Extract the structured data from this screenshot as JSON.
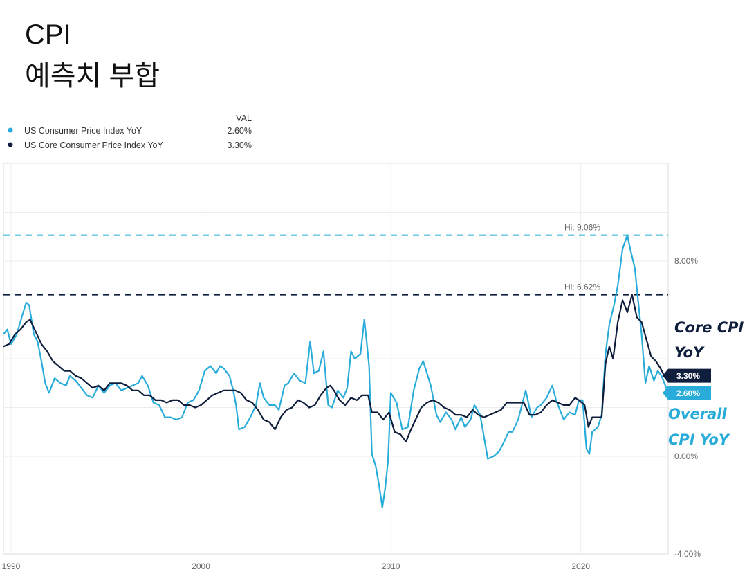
{
  "post": {
    "title_line1": "CPI",
    "title_line2": "예측치 부합"
  },
  "chart_data": {
    "type": "line",
    "legend_header": "VAL",
    "xlabel": "",
    "ylabel": "",
    "xlim": [
      1989.6,
      2024.6
    ],
    "ylim": [
      -4,
      12
    ],
    "x_ticks": [
      1990,
      2000,
      2010,
      2020
    ],
    "x_tick_labels": [
      "1990",
      "2000",
      "2010",
      "2020"
    ],
    "y_ticks": [
      8,
      0,
      -4
    ],
    "y_tick_labels": [
      "8.00%",
      "0.00%",
      "-4.00%"
    ],
    "colors": {
      "headline": "#29acd9",
      "core": "#0f1e3c"
    },
    "series": [
      {
        "name": "US Consumer Price Index YoY",
        "legend_value": "2.60%",
        "end_label": "2.60%",
        "high": 9.06,
        "high_label": "Hi: 9.06%",
        "points": [
          [
            1989.6,
            5.0
          ],
          [
            1989.8,
            5.2
          ],
          [
            1990.0,
            4.6
          ],
          [
            1990.3,
            5.0
          ],
          [
            1990.6,
            5.8
          ],
          [
            1990.8,
            6.3
          ],
          [
            1990.95,
            6.2
          ],
          [
            1991.2,
            5.0
          ],
          [
            1991.4,
            4.7
          ],
          [
            1991.6,
            3.9
          ],
          [
            1991.8,
            3.0
          ],
          [
            1992.0,
            2.6
          ],
          [
            1992.3,
            3.2
          ],
          [
            1992.6,
            3.0
          ],
          [
            1992.9,
            2.9
          ],
          [
            1993.1,
            3.3
          ],
          [
            1993.4,
            3.1
          ],
          [
            1993.7,
            2.8
          ],
          [
            1994.0,
            2.5
          ],
          [
            1994.3,
            2.4
          ],
          [
            1994.6,
            2.9
          ],
          [
            1994.9,
            2.6
          ],
          [
            1995.2,
            2.9
          ],
          [
            1995.5,
            3.0
          ],
          [
            1995.8,
            2.7
          ],
          [
            1996.1,
            2.8
          ],
          [
            1996.4,
            2.9
          ],
          [
            1996.7,
            3.0
          ],
          [
            1996.9,
            3.3
          ],
          [
            1997.2,
            2.9
          ],
          [
            1997.5,
            2.2
          ],
          [
            1997.8,
            2.1
          ],
          [
            1998.1,
            1.6
          ],
          [
            1998.4,
            1.6
          ],
          [
            1998.7,
            1.5
          ],
          [
            1999.0,
            1.6
          ],
          [
            1999.3,
            2.2
          ],
          [
            1999.6,
            2.3
          ],
          [
            1999.9,
            2.7
          ],
          [
            2000.2,
            3.5
          ],
          [
            2000.5,
            3.7
          ],
          [
            2000.8,
            3.4
          ],
          [
            2001.0,
            3.7
          ],
          [
            2001.2,
            3.6
          ],
          [
            2001.5,
            3.3
          ],
          [
            2001.7,
            2.7
          ],
          [
            2001.85,
            2.1
          ],
          [
            2002.0,
            1.1
          ],
          [
            2002.3,
            1.2
          ],
          [
            2002.6,
            1.6
          ],
          [
            2002.9,
            2.1
          ],
          [
            2003.1,
            3.0
          ],
          [
            2003.3,
            2.4
          ],
          [
            2003.6,
            2.1
          ],
          [
            2003.9,
            2.1
          ],
          [
            2004.1,
            1.9
          ],
          [
            2004.4,
            2.9
          ],
          [
            2004.6,
            3.0
          ],
          [
            2004.9,
            3.4
          ],
          [
            2005.2,
            3.1
          ],
          [
            2005.5,
            3.0
          ],
          [
            2005.75,
            4.7
          ],
          [
            2005.95,
            3.4
          ],
          [
            2006.2,
            3.5
          ],
          [
            2006.45,
            4.3
          ],
          [
            2006.7,
            2.1
          ],
          [
            2006.9,
            2.0
          ],
          [
            2007.2,
            2.7
          ],
          [
            2007.5,
            2.4
          ],
          [
            2007.7,
            2.8
          ],
          [
            2007.9,
            4.3
          ],
          [
            2008.1,
            4.0
          ],
          [
            2008.4,
            4.2
          ],
          [
            2008.6,
            5.6
          ],
          [
            2008.7,
            4.9
          ],
          [
            2008.85,
            3.7
          ],
          [
            2009.0,
            0.1
          ],
          [
            2009.2,
            -0.4
          ],
          [
            2009.4,
            -1.3
          ],
          [
            2009.55,
            -2.1
          ],
          [
            2009.7,
            -1.3
          ],
          [
            2009.85,
            -0.2
          ],
          [
            2010.0,
            2.6
          ],
          [
            2010.3,
            2.2
          ],
          [
            2010.6,
            1.1
          ],
          [
            2010.9,
            1.2
          ],
          [
            2011.2,
            2.7
          ],
          [
            2011.5,
            3.6
          ],
          [
            2011.7,
            3.9
          ],
          [
            2011.9,
            3.4
          ],
          [
            2012.1,
            2.9
          ],
          [
            2012.4,
            1.7
          ],
          [
            2012.6,
            1.4
          ],
          [
            2012.9,
            1.8
          ],
          [
            2013.2,
            1.5
          ],
          [
            2013.4,
            1.1
          ],
          [
            2013.7,
            1.6
          ],
          [
            2013.9,
            1.2
          ],
          [
            2014.2,
            1.5
          ],
          [
            2014.4,
            2.1
          ],
          [
            2014.7,
            1.7
          ],
          [
            2014.9,
            0.8
          ],
          [
            2015.1,
            -0.1
          ],
          [
            2015.4,
            0.0
          ],
          [
            2015.7,
            0.2
          ],
          [
            2015.9,
            0.5
          ],
          [
            2016.2,
            1.0
          ],
          [
            2016.4,
            1.0
          ],
          [
            2016.7,
            1.5
          ],
          [
            2016.9,
            2.1
          ],
          [
            2017.1,
            2.7
          ],
          [
            2017.4,
            1.6
          ],
          [
            2017.7,
            2.0
          ],
          [
            2017.9,
            2.1
          ],
          [
            2018.2,
            2.4
          ],
          [
            2018.5,
            2.9
          ],
          [
            2018.7,
            2.3
          ],
          [
            2018.9,
            1.9
          ],
          [
            2019.1,
            1.5
          ],
          [
            2019.4,
            1.8
          ],
          [
            2019.7,
            1.7
          ],
          [
            2019.9,
            2.3
          ],
          [
            2020.1,
            2.3
          ],
          [
            2020.3,
            0.3
          ],
          [
            2020.45,
            0.1
          ],
          [
            2020.6,
            1.0
          ],
          [
            2020.9,
            1.2
          ],
          [
            2021.1,
            1.7
          ],
          [
            2021.3,
            4.2
          ],
          [
            2021.5,
            5.4
          ],
          [
            2021.75,
            6.2
          ],
          [
            2021.95,
            7.0
          ],
          [
            2022.2,
            8.5
          ],
          [
            2022.45,
            9.06
          ],
          [
            2022.6,
            8.5
          ],
          [
            2022.85,
            7.7
          ],
          [
            2023.0,
            6.5
          ],
          [
            2023.2,
            5.0
          ],
          [
            2023.4,
            3.0
          ],
          [
            2023.6,
            3.7
          ],
          [
            2023.85,
            3.1
          ],
          [
            2024.05,
            3.5
          ],
          [
            2024.25,
            3.3
          ],
          [
            2024.45,
            2.9
          ],
          [
            2024.6,
            2.6
          ]
        ]
      },
      {
        "name": "US Core Consumer Price Index YoY",
        "legend_value": "3.30%",
        "end_label": "3.30%",
        "high": 6.62,
        "high_label": "Hi: 6.62%",
        "points": [
          [
            1989.6,
            4.5
          ],
          [
            1989.9,
            4.6
          ],
          [
            1990.2,
            5.0
          ],
          [
            1990.5,
            5.2
          ],
          [
            1990.8,
            5.5
          ],
          [
            1991.0,
            5.6
          ],
          [
            1991.3,
            5.1
          ],
          [
            1991.6,
            4.6
          ],
          [
            1991.9,
            4.3
          ],
          [
            1992.2,
            3.9
          ],
          [
            1992.5,
            3.7
          ],
          [
            1992.8,
            3.5
          ],
          [
            1993.1,
            3.5
          ],
          [
            1993.4,
            3.3
          ],
          [
            1993.7,
            3.2
          ],
          [
            1994.0,
            3.0
          ],
          [
            1994.3,
            2.8
          ],
          [
            1994.6,
            2.9
          ],
          [
            1994.9,
            2.7
          ],
          [
            1995.2,
            3.0
          ],
          [
            1995.5,
            3.0
          ],
          [
            1995.8,
            3.0
          ],
          [
            1996.1,
            2.9
          ],
          [
            1996.4,
            2.7
          ],
          [
            1996.7,
            2.7
          ],
          [
            1997.0,
            2.5
          ],
          [
            1997.3,
            2.5
          ],
          [
            1997.6,
            2.3
          ],
          [
            1997.9,
            2.3
          ],
          [
            1998.2,
            2.2
          ],
          [
            1998.5,
            2.3
          ],
          [
            1998.8,
            2.3
          ],
          [
            1999.1,
            2.1
          ],
          [
            1999.4,
            2.1
          ],
          [
            1999.7,
            2.0
          ],
          [
            2000.0,
            2.1
          ],
          [
            2000.3,
            2.3
          ],
          [
            2000.6,
            2.5
          ],
          [
            2000.9,
            2.6
          ],
          [
            2001.2,
            2.7
          ],
          [
            2001.5,
            2.7
          ],
          [
            2001.8,
            2.7
          ],
          [
            2002.1,
            2.6
          ],
          [
            2002.4,
            2.3
          ],
          [
            2002.7,
            2.2
          ],
          [
            2003.0,
            1.9
          ],
          [
            2003.3,
            1.5
          ],
          [
            2003.6,
            1.4
          ],
          [
            2003.9,
            1.1
          ],
          [
            2004.2,
            1.6
          ],
          [
            2004.5,
            1.9
          ],
          [
            2004.8,
            2.0
          ],
          [
            2005.1,
            2.3
          ],
          [
            2005.4,
            2.2
          ],
          [
            2005.7,
            2.0
          ],
          [
            2006.0,
            2.1
          ],
          [
            2006.3,
            2.5
          ],
          [
            2006.6,
            2.8
          ],
          [
            2006.8,
            2.9
          ],
          [
            2007.0,
            2.7
          ],
          [
            2007.3,
            2.3
          ],
          [
            2007.6,
            2.1
          ],
          [
            2007.9,
            2.4
          ],
          [
            2008.2,
            2.3
          ],
          [
            2008.5,
            2.5
          ],
          [
            2008.8,
            2.5
          ],
          [
            2009.0,
            1.8
          ],
          [
            2009.3,
            1.8
          ],
          [
            2009.6,
            1.5
          ],
          [
            2009.9,
            1.8
          ],
          [
            2010.2,
            1.0
          ],
          [
            2010.5,
            0.9
          ],
          [
            2010.8,
            0.6
          ],
          [
            2011.0,
            1.0
          ],
          [
            2011.3,
            1.5
          ],
          [
            2011.6,
            2.0
          ],
          [
            2011.9,
            2.2
          ],
          [
            2012.2,
            2.3
          ],
          [
            2012.5,
            2.2
          ],
          [
            2012.8,
            2.0
          ],
          [
            2013.1,
            1.9
          ],
          [
            2013.4,
            1.7
          ],
          [
            2013.7,
            1.7
          ],
          [
            2014.0,
            1.6
          ],
          [
            2014.3,
            1.9
          ],
          [
            2014.6,
            1.7
          ],
          [
            2014.9,
            1.6
          ],
          [
            2015.2,
            1.7
          ],
          [
            2015.5,
            1.8
          ],
          [
            2015.8,
            1.9
          ],
          [
            2016.1,
            2.2
          ],
          [
            2016.4,
            2.2
          ],
          [
            2016.7,
            2.2
          ],
          [
            2017.0,
            2.2
          ],
          [
            2017.3,
            1.7
          ],
          [
            2017.6,
            1.7
          ],
          [
            2017.9,
            1.8
          ],
          [
            2018.2,
            2.1
          ],
          [
            2018.5,
            2.3
          ],
          [
            2018.8,
            2.2
          ],
          [
            2019.1,
            2.1
          ],
          [
            2019.4,
            2.1
          ],
          [
            2019.7,
            2.4
          ],
          [
            2019.9,
            2.3
          ],
          [
            2020.2,
            2.1
          ],
          [
            2020.4,
            1.2
          ],
          [
            2020.6,
            1.6
          ],
          [
            2020.9,
            1.6
          ],
          [
            2021.1,
            1.6
          ],
          [
            2021.3,
            3.8
          ],
          [
            2021.5,
            4.5
          ],
          [
            2021.7,
            4.0
          ],
          [
            2021.95,
            5.5
          ],
          [
            2022.2,
            6.4
          ],
          [
            2022.45,
            5.9
          ],
          [
            2022.7,
            6.62
          ],
          [
            2022.95,
            5.7
          ],
          [
            2023.2,
            5.5
          ],
          [
            2023.45,
            4.8
          ],
          [
            2023.7,
            4.1
          ],
          [
            2023.95,
            3.9
          ],
          [
            2024.2,
            3.6
          ],
          [
            2024.4,
            3.3
          ],
          [
            2024.6,
            3.3
          ]
        ]
      }
    ],
    "annotations": {
      "core_line1": "Core CPI",
      "core_line2": "YoY",
      "overall_line1": "Overall",
      "overall_line2": "CPI YoY"
    }
  }
}
